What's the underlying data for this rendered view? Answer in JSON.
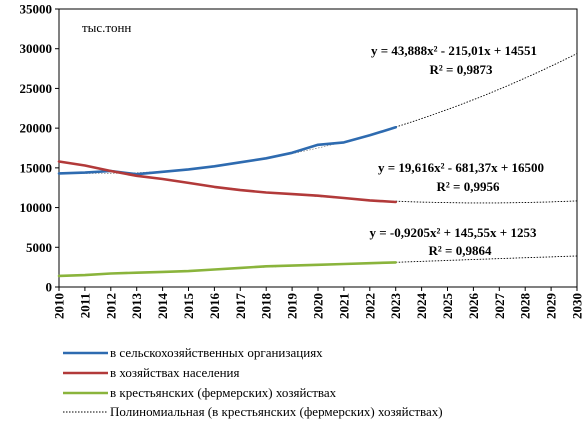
{
  "chart_data": {
    "type": "line",
    "unit_label": "тыс.тонн",
    "ylim": [
      0,
      35000
    ],
    "yticks": [
      0,
      5000,
      10000,
      15000,
      20000,
      25000,
      30000,
      35000
    ],
    "xlim": [
      2010,
      2030
    ],
    "xticks": [
      2010,
      2011,
      2012,
      2013,
      2014,
      2015,
      2016,
      2017,
      2018,
      2019,
      2020,
      2021,
      2022,
      2023,
      2024,
      2025,
      2026,
      2027,
      2028,
      2029,
      2030
    ],
    "grid": false,
    "legend_position": "bottom",
    "series": [
      {
        "name": "в сельскохозяйственных организациях",
        "color": "#2e6bb0",
        "x": [
          2010,
          2011,
          2012,
          2013,
          2014,
          2015,
          2016,
          2017,
          2018,
          2019,
          2020,
          2021,
          2022,
          2023
        ],
        "values": [
          14300,
          14400,
          14600,
          14200,
          14500,
          14800,
          15200,
          15700,
          16200,
          16900,
          17900,
          18200,
          19100,
          20100
        ]
      },
      {
        "name": "в хозяйствах населения",
        "color": "#b23a3a",
        "x": [
          2010,
          2011,
          2012,
          2013,
          2014,
          2015,
          2016,
          2017,
          2018,
          2019,
          2020,
          2021,
          2022,
          2023
        ],
        "values": [
          15800,
          15300,
          14600,
          14000,
          13600,
          13100,
          12600,
          12200,
          11900,
          11700,
          11500,
          11200,
          10900,
          10700
        ]
      },
      {
        "name": "в крестьянских (фермерских) хозяйствах",
        "color": "#8ab43c",
        "x": [
          2010,
          2011,
          2012,
          2013,
          2014,
          2015,
          2016,
          2017,
          2018,
          2019,
          2020,
          2021,
          2022,
          2023
        ],
        "values": [
          1400,
          1500,
          1700,
          1800,
          1900,
          2000,
          2200,
          2400,
          2600,
          2700,
          2800,
          2900,
          3000,
          3100
        ]
      }
    ],
    "trendlines": [
      {
        "equation": "y = 43,888x² - 215,01x + 14551",
        "r2": "R² = 0,9873",
        "a": 43.888,
        "b": -215.01,
        "c": 14551
      },
      {
        "equation": "y = 19,616x² - 681,37x + 16500",
        "r2": "R² = 0,9956",
        "a": 19.616,
        "b": -681.37,
        "c": 16500
      },
      {
        "equation": "y = -0,9205x² + 145,55x + 1253",
        "r2": "R² = 0,9864",
        "a": -0.9205,
        "b": 145.55,
        "c": 1253
      }
    ],
    "trendline_legend": "Полиномиальная (в крестьянских (фермерских) хозяйствах)"
  }
}
